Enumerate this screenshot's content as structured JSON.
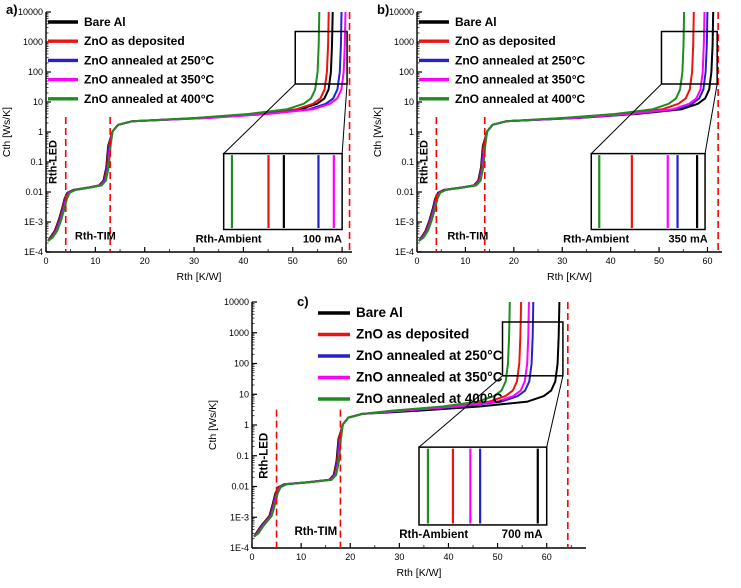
{
  "figure": {
    "background": "#ffffff",
    "dashed_line_color": "#ff0000"
  },
  "chart_data": [
    {
      "type": "line",
      "tag": "a)",
      "current_label": "100 mA",
      "xlabel": "Rth  [K/W]",
      "ylabel": "Cth  [Ws/K]",
      "xlim": [
        0,
        62
      ],
      "xticks": [
        0,
        10,
        20,
        30,
        40,
        50,
        60
      ],
      "yscale": "log",
      "ylog_range": [
        -4,
        4
      ],
      "ytick_labels": [
        "1E-4",
        "1E-3",
        "0.01",
        "0.1",
        "1",
        "10",
        "100",
        "1000",
        "10000"
      ],
      "step1_x": 4,
      "step2_x": 13,
      "dashed_x": [
        4,
        13,
        61.5
      ],
      "dashed_partial_top_log": 0.5,
      "annotations": {
        "led": "Rth-LED",
        "tim": "Rth-TIM",
        "ambient": "Rth-Ambient"
      },
      "ambient_label_x": 37,
      "current_label_x": 56,
      "series": [
        {
          "name": "Bare Al",
          "color": "#000000",
          "ambient_rth": 58.1
        },
        {
          "name": "ZnO as deposited",
          "color": "#ee1111",
          "ambient_rth": 57.3
        },
        {
          "name": "ZnO annealed at 250°C",
          "color": "#2222cc",
          "ambient_rth": 59.9
        },
        {
          "name": "ZnO annealed at 350°C",
          "color": "#ff00ff",
          "ambient_rth": 60.7
        },
        {
          "name": "ZnO annealed at 400°C",
          "color": "#1e8c1e",
          "ambient_rth": 55.4
        }
      ],
      "zoom_box_x": [
        50.5,
        61
      ],
      "zoom_box_ylog": [
        1.6,
        3.35
      ],
      "inset_box_x": [
        36,
        60
      ],
      "inset_box_ylog": [
        -3.25,
        -0.72
      ]
    },
    {
      "type": "line",
      "tag": "b)",
      "current_label": "350 mA",
      "xlabel": "Rth  [K/W]",
      "ylabel": "Cth  [Ws/K]",
      "xlim": [
        0,
        63
      ],
      "xticks": [
        0,
        10,
        20,
        30,
        40,
        50,
        60
      ],
      "yscale": "log",
      "ylog_range": [
        -4,
        4
      ],
      "ytick_labels": [
        "1E-4",
        "1E-3",
        "0.01",
        "0.1",
        "1",
        "10",
        "100",
        "1000",
        "10000"
      ],
      "step1_x": 4,
      "step2_x": 14,
      "dashed_x": [
        4,
        14,
        62.2
      ],
      "dashed_partial_top_log": 0.5,
      "annotations": {
        "led": "Rth-LED",
        "tim": "Rth-TIM",
        "ambient": "Rth-Ambient"
      },
      "ambient_label_x": 37,
      "current_label_x": 56,
      "series": [
        {
          "name": "Bare Al",
          "color": "#000000",
          "ambient_rth": 61.2
        },
        {
          "name": "ZnO as deposited",
          "color": "#ee1111",
          "ambient_rth": 57.2
        },
        {
          "name": "ZnO annealed at 250°C",
          "color": "#2222cc",
          "ambient_rth": 60.0
        },
        {
          "name": "ZnO annealed at 350°C",
          "color": "#ff00ff",
          "ambient_rth": 59.4
        },
        {
          "name": "ZnO annealed at 400°C",
          "color": "#1e8c1e",
          "ambient_rth": 55.2
        }
      ],
      "zoom_box_x": [
        50.5,
        62
      ],
      "zoom_box_ylog": [
        1.6,
        3.35
      ],
      "inset_box_x": [
        36,
        59.5
      ],
      "inset_box_ylog": [
        -3.25,
        -0.72
      ]
    },
    {
      "type": "line",
      "tag": "c)",
      "current_label": "700 mA",
      "xlabel": "Rth  [K/W]",
      "ylabel": "Cth  [Ws/K]",
      "xlim": [
        0,
        68
      ],
      "xticks": [
        0,
        10,
        20,
        30,
        40,
        50,
        60
      ],
      "yscale": "log",
      "ylog_range": [
        -4,
        4
      ],
      "ytick_labels": [
        "1E-4",
        "1E-3",
        "0.01",
        "0.1",
        "1",
        "10",
        "100",
        "1000",
        "10000"
      ],
      "step1_x": 5,
      "step2_x": 18,
      "dashed_x": [
        5,
        18,
        64.3
      ],
      "dashed_partial_top_log": 0.5,
      "annotations": {
        "led": "Rth-LED",
        "tim": "Rth-TIM",
        "ambient": "Rth-Ambient"
      },
      "ambient_label_x": 37,
      "current_label_x": 55,
      "series": [
        {
          "name": "Bare Al",
          "color": "#000000",
          "ambient_rth": 62.6
        },
        {
          "name": "ZnO as deposited",
          "color": "#ee1111",
          "ambient_rth": 54.8
        },
        {
          "name": "ZnO annealed at 250°C",
          "color": "#2222cc",
          "ambient_rth": 57.3
        },
        {
          "name": "ZnO annealed at 350°C",
          "color": "#ff00ff",
          "ambient_rth": 56.4
        },
        {
          "name": "ZnO annealed at 400°C",
          "color": "#1e8c1e",
          "ambient_rth": 52.5
        }
      ],
      "zoom_box_x": [
        51,
        63.3
      ],
      "zoom_box_ylog": [
        1.6,
        3.35
      ],
      "inset_box_x": [
        34,
        60
      ],
      "inset_box_ylog": [
        -3.25,
        -0.72
      ]
    }
  ]
}
